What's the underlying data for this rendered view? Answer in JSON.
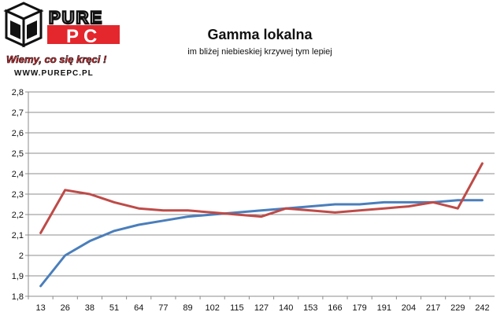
{
  "logo": {
    "brand_top": "PURE",
    "brand_bottom": "PC",
    "slogan": "Wiemy, co się kręci !",
    "url": "WWW.PUREPC.PL"
  },
  "chart_data": {
    "type": "line",
    "title": "Gamma lokalna",
    "subtitle": "im bliżej niebieskiej krzywej tym lepiej",
    "xlabel": "",
    "ylabel": "",
    "categories": [
      "13",
      "26",
      "38",
      "51",
      "64",
      "77",
      "89",
      "102",
      "115",
      "127",
      "140",
      "153",
      "166",
      "179",
      "191",
      "204",
      "217",
      "229",
      "242"
    ],
    "ylim": [
      1.8,
      2.8
    ],
    "yticks": [
      "1,8",
      "1,9",
      "2",
      "2,1",
      "2,2",
      "2,3",
      "2,4",
      "2,5",
      "2,6",
      "2,7",
      "2,8"
    ],
    "grid": true,
    "legend": "none",
    "series": [
      {
        "color": "#4a7ebb",
        "values": [
          1.85,
          2.0,
          2.07,
          2.12,
          2.15,
          2.17,
          2.19,
          2.2,
          2.21,
          2.22,
          2.23,
          2.24,
          2.25,
          2.25,
          2.26,
          2.26,
          2.26,
          2.27,
          2.27
        ]
      },
      {
        "color": "#be4b48",
        "values": [
          2.11,
          2.32,
          2.3,
          2.26,
          2.23,
          2.22,
          2.22,
          2.21,
          2.2,
          2.19,
          2.23,
          2.22,
          2.21,
          2.22,
          2.23,
          2.24,
          2.26,
          2.23,
          2.45
        ]
      }
    ]
  }
}
